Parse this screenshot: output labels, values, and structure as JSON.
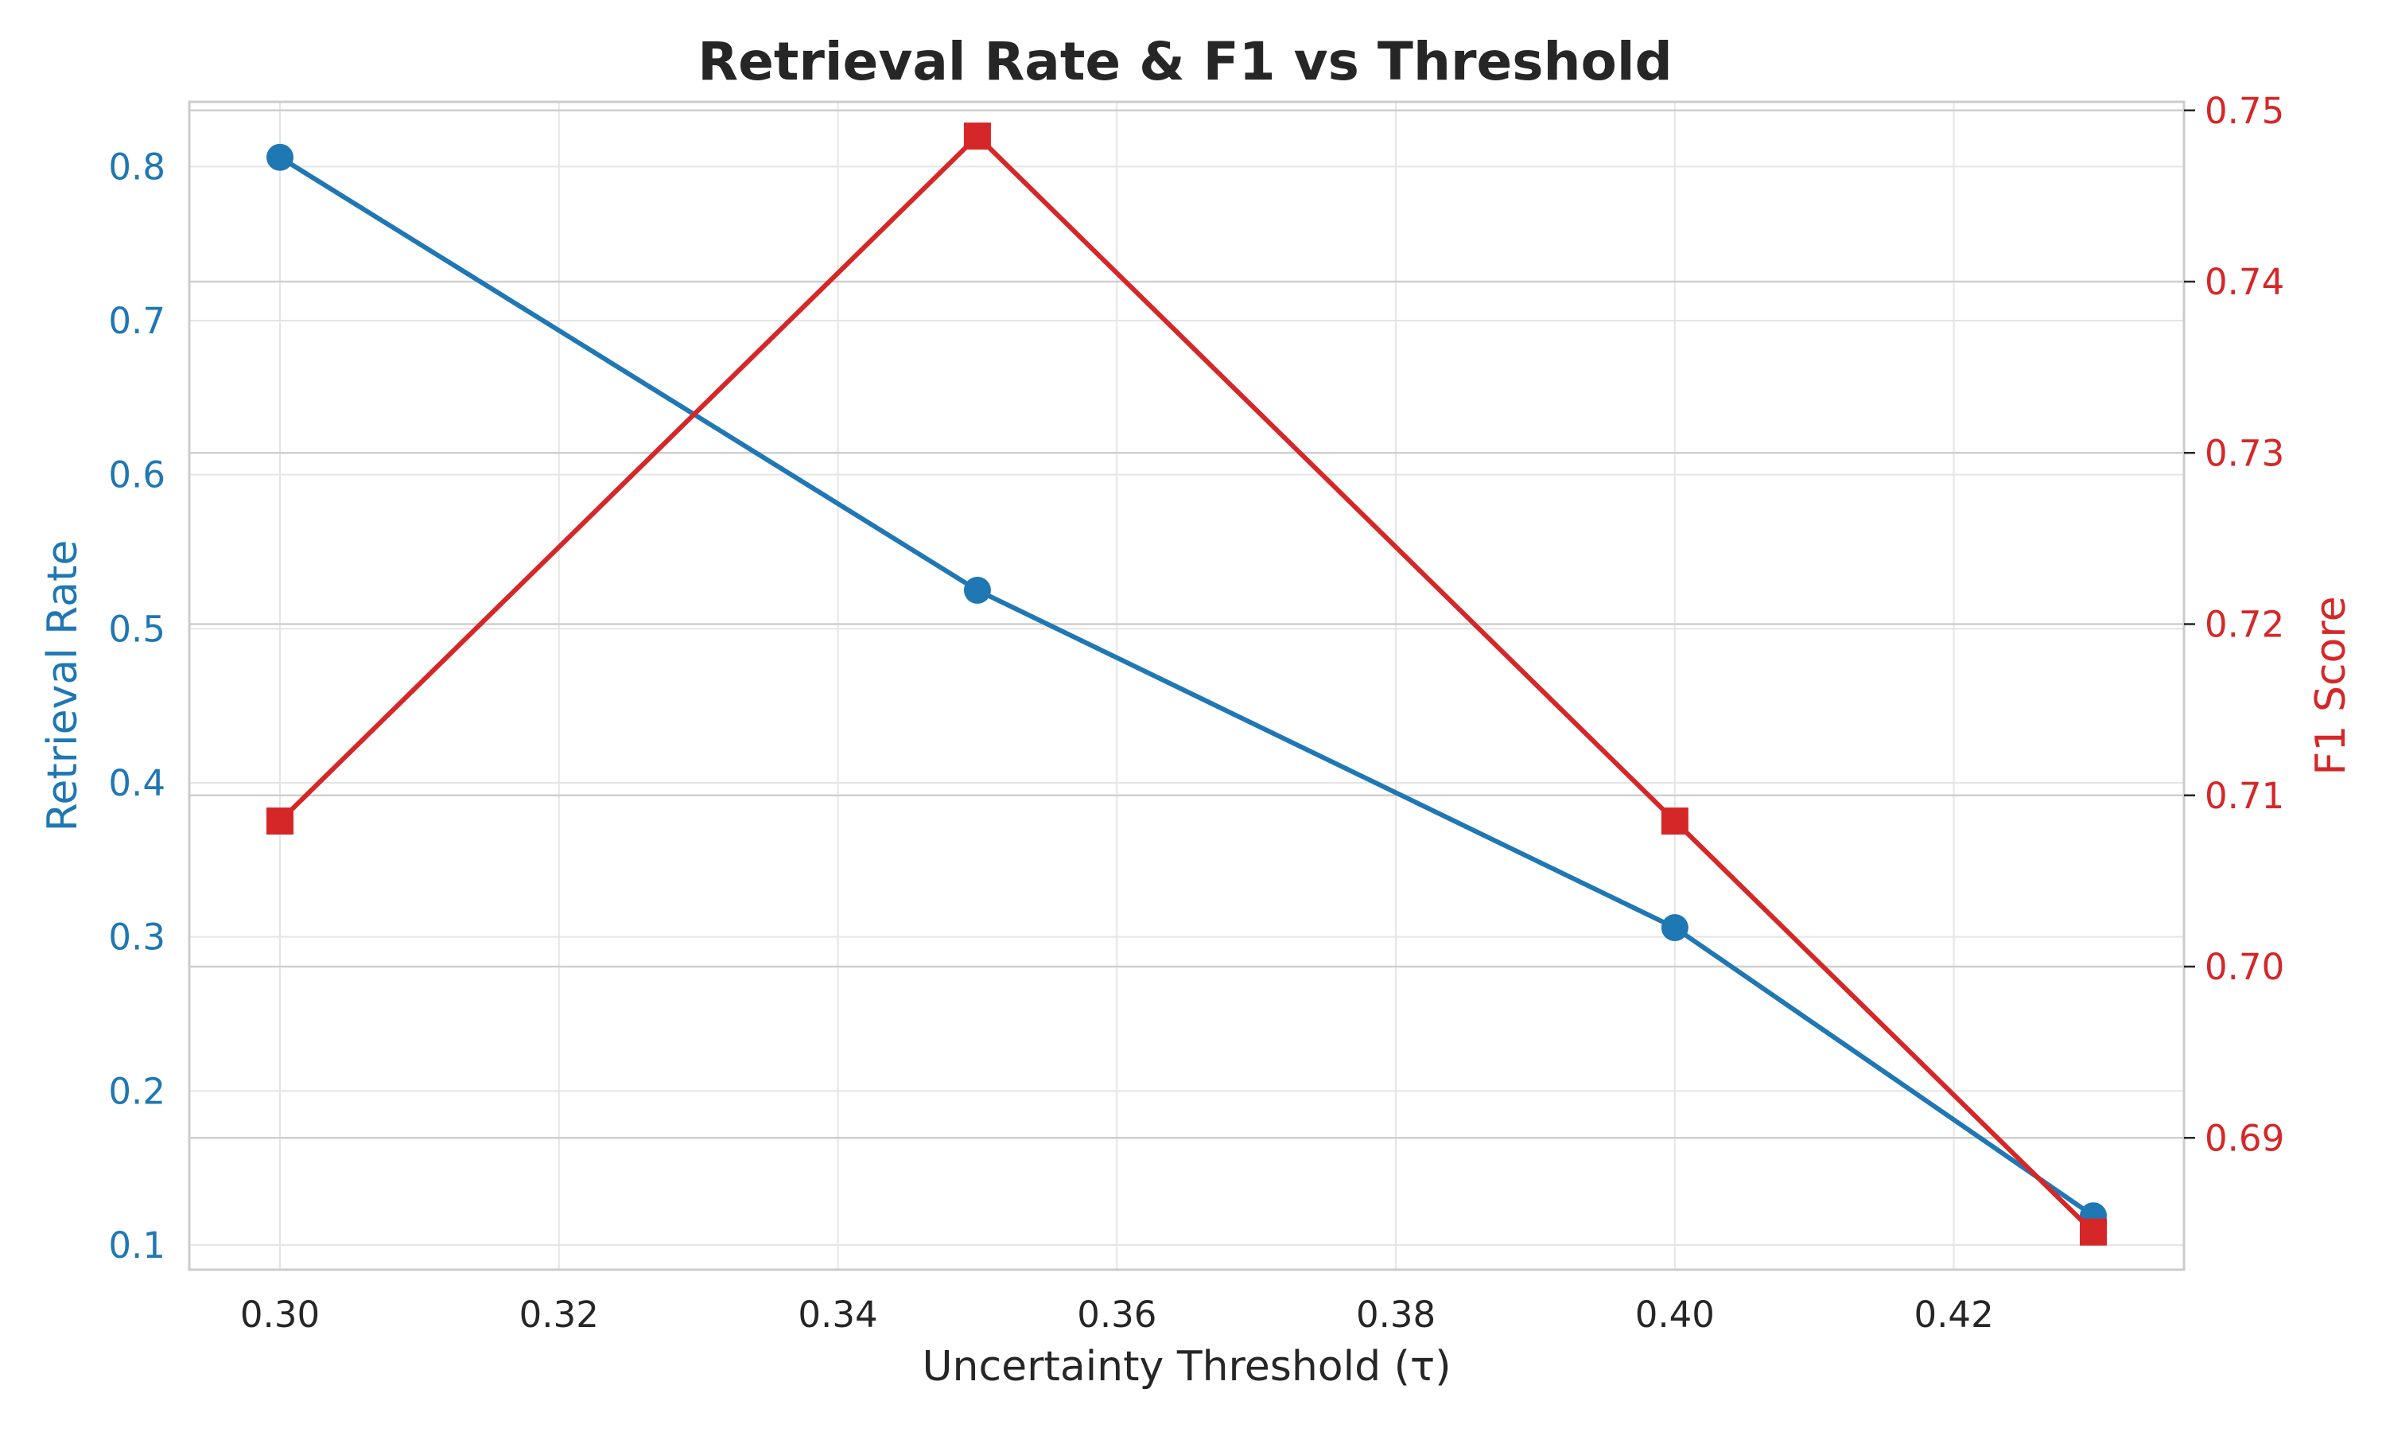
{
  "colors": {
    "retrieval": "#1f77b4",
    "f1": "#d62728",
    "text": "#262626",
    "grid": "#e5e5e5",
    "frame": "#cccccc",
    "right_grid": "#cfcfcf"
  },
  "chart_data": {
    "type": "line",
    "title": "Retrieval Rate & F1 vs Threshold",
    "xlabel": "Uncertainty Threshold (τ)",
    "ylabel": "Retrieval Rate",
    "y2label": "F1 Score",
    "xlim": [
      0.2935,
      0.4365
    ],
    "ylim": [
      0.084,
      0.842
    ],
    "y2lim": [
      0.6823,
      0.7505
    ],
    "x_ticks": [
      "0.30",
      "0.32",
      "0.34",
      "0.36",
      "0.38",
      "0.40",
      "0.42"
    ],
    "y_ticks": [
      "0.1",
      "0.2",
      "0.3",
      "0.4",
      "0.5",
      "0.6",
      "0.7",
      "0.8"
    ],
    "y2_ticks": [
      "0.69",
      "0.70",
      "0.71",
      "0.72",
      "0.73",
      "0.74",
      "0.75"
    ],
    "grid": true,
    "series": [
      {
        "name": "Retrieval Rate",
        "axis": "left",
        "marker": "circle",
        "x": [
          0.3,
          0.35,
          0.4,
          0.43
        ],
        "values": [
          0.806,
          0.525,
          0.306,
          0.119
        ]
      },
      {
        "name": "F1 Score",
        "axis": "right",
        "marker": "square",
        "x": [
          0.3,
          0.35,
          0.4,
          0.43
        ],
        "values": [
          0.7085,
          0.7485,
          0.7085,
          0.6845
        ]
      }
    ]
  }
}
